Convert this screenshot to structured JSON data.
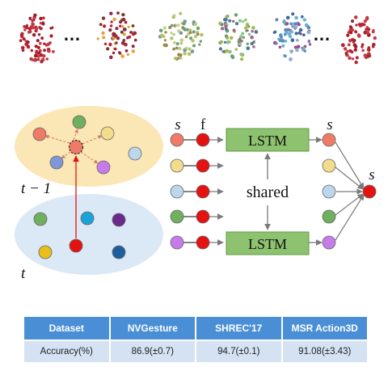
{
  "colors": {
    "salmon": "#ef7a66",
    "red": "#e51212",
    "tan": "#f3dc8b",
    "lightblue": "#bcd6ec",
    "green": "#6fb05e",
    "purple": "#c77be8",
    "cyan": "#19a3d9",
    "darkpurple": "#6a2a8a",
    "yellow": "#e8c01c",
    "navy": "#1f5e9e",
    "periwinkle": "#7d97d8",
    "lstm_fill": "#8dc26f",
    "lstm_border": "#5f9a45",
    "upper_ellipse": "#fbe7b5",
    "lower_ellipse": "#dbe8f5",
    "arrow": "#7a7a7a",
    "table_header": "#4a8fd6",
    "table_cell": "#d4e2f3"
  },
  "top_strip": {
    "ellipsis": [
      "…",
      "…"
    ]
  },
  "graph": {
    "prev_label": "t − 1",
    "curr_label": "t"
  },
  "lstm": {
    "s_label": "s",
    "f_label": "f",
    "box_label": "LSTM",
    "shared_label": "shared",
    "out_label": "s",
    "final_label": "s"
  },
  "table": {
    "headers": [
      "Dataset",
      "NVGesture",
      "SHREC'17",
      "MSR Action3D"
    ],
    "rows": [
      [
        "Accuracy(%)",
        "86.9(±0.7)",
        "94.7(±0.1)",
        "91.08(±3.43)"
      ]
    ]
  }
}
